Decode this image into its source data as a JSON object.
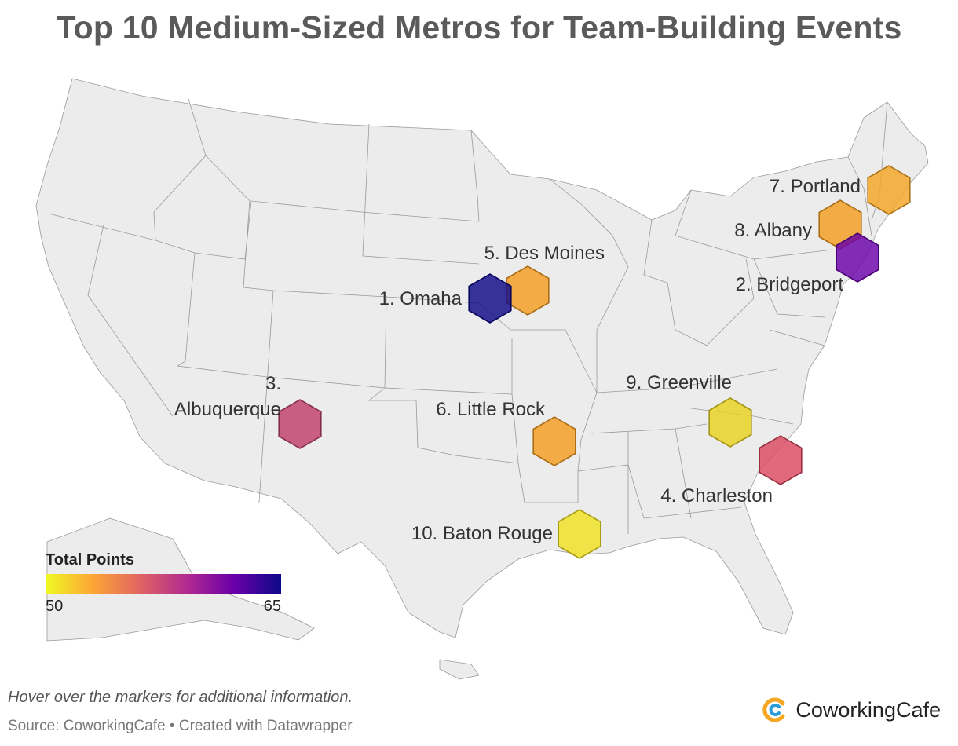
{
  "title": "Top 10 Medium-Sized Metros for Team-Building Events",
  "legend": {
    "title": "Total Points",
    "min_label": "50",
    "max_label": "65",
    "min": 50,
    "max": 65
  },
  "note": "Hover over the markers for additional information.",
  "source": "Source: CoworkingCafe • Created with Datawrapper",
  "brand": {
    "name": "CoworkingCafe",
    "icon": "coworkingcafe-logo-icon",
    "colors": [
      "#f5a623",
      "#2d9cdb"
    ]
  },
  "colors": {
    "land": "#ececec",
    "state_border": "#9a9a9a",
    "title": "#5a5a5a"
  },
  "markers": [
    {
      "rank": 1,
      "label": "1. Omaha",
      "points": 65,
      "color": "#0d0887"
    },
    {
      "rank": 2,
      "label": "2. Bridgeport",
      "points": 62,
      "color": "#6a00a8"
    },
    {
      "rank": 3,
      "label_lines": [
        "3.",
        "Albuquerque"
      ],
      "points": 58.5,
      "color": "#c0406a"
    },
    {
      "rank": 4,
      "label": "4. Charleston",
      "points": 57.5,
      "color": "#d9485f"
    },
    {
      "rank": 5,
      "label": "5. Des Moines",
      "points": 54,
      "color": "#f39c20"
    },
    {
      "rank": 6,
      "label": "6. Little Rock",
      "points": 54,
      "color": "#f39c20"
    },
    {
      "rank": 7,
      "label": "7. Portland",
      "points": 53.5,
      "color": "#f5a623"
    },
    {
      "rank": 8,
      "label": "8. Albany",
      "points": 53.5,
      "color": "#f39c20"
    },
    {
      "rank": 9,
      "label": "9. Greenville",
      "points": 51,
      "color": "#e8d21d"
    },
    {
      "rank": 10,
      "label": "10. Baton Rouge",
      "points": 50,
      "color": "#f0e020"
    }
  ]
}
